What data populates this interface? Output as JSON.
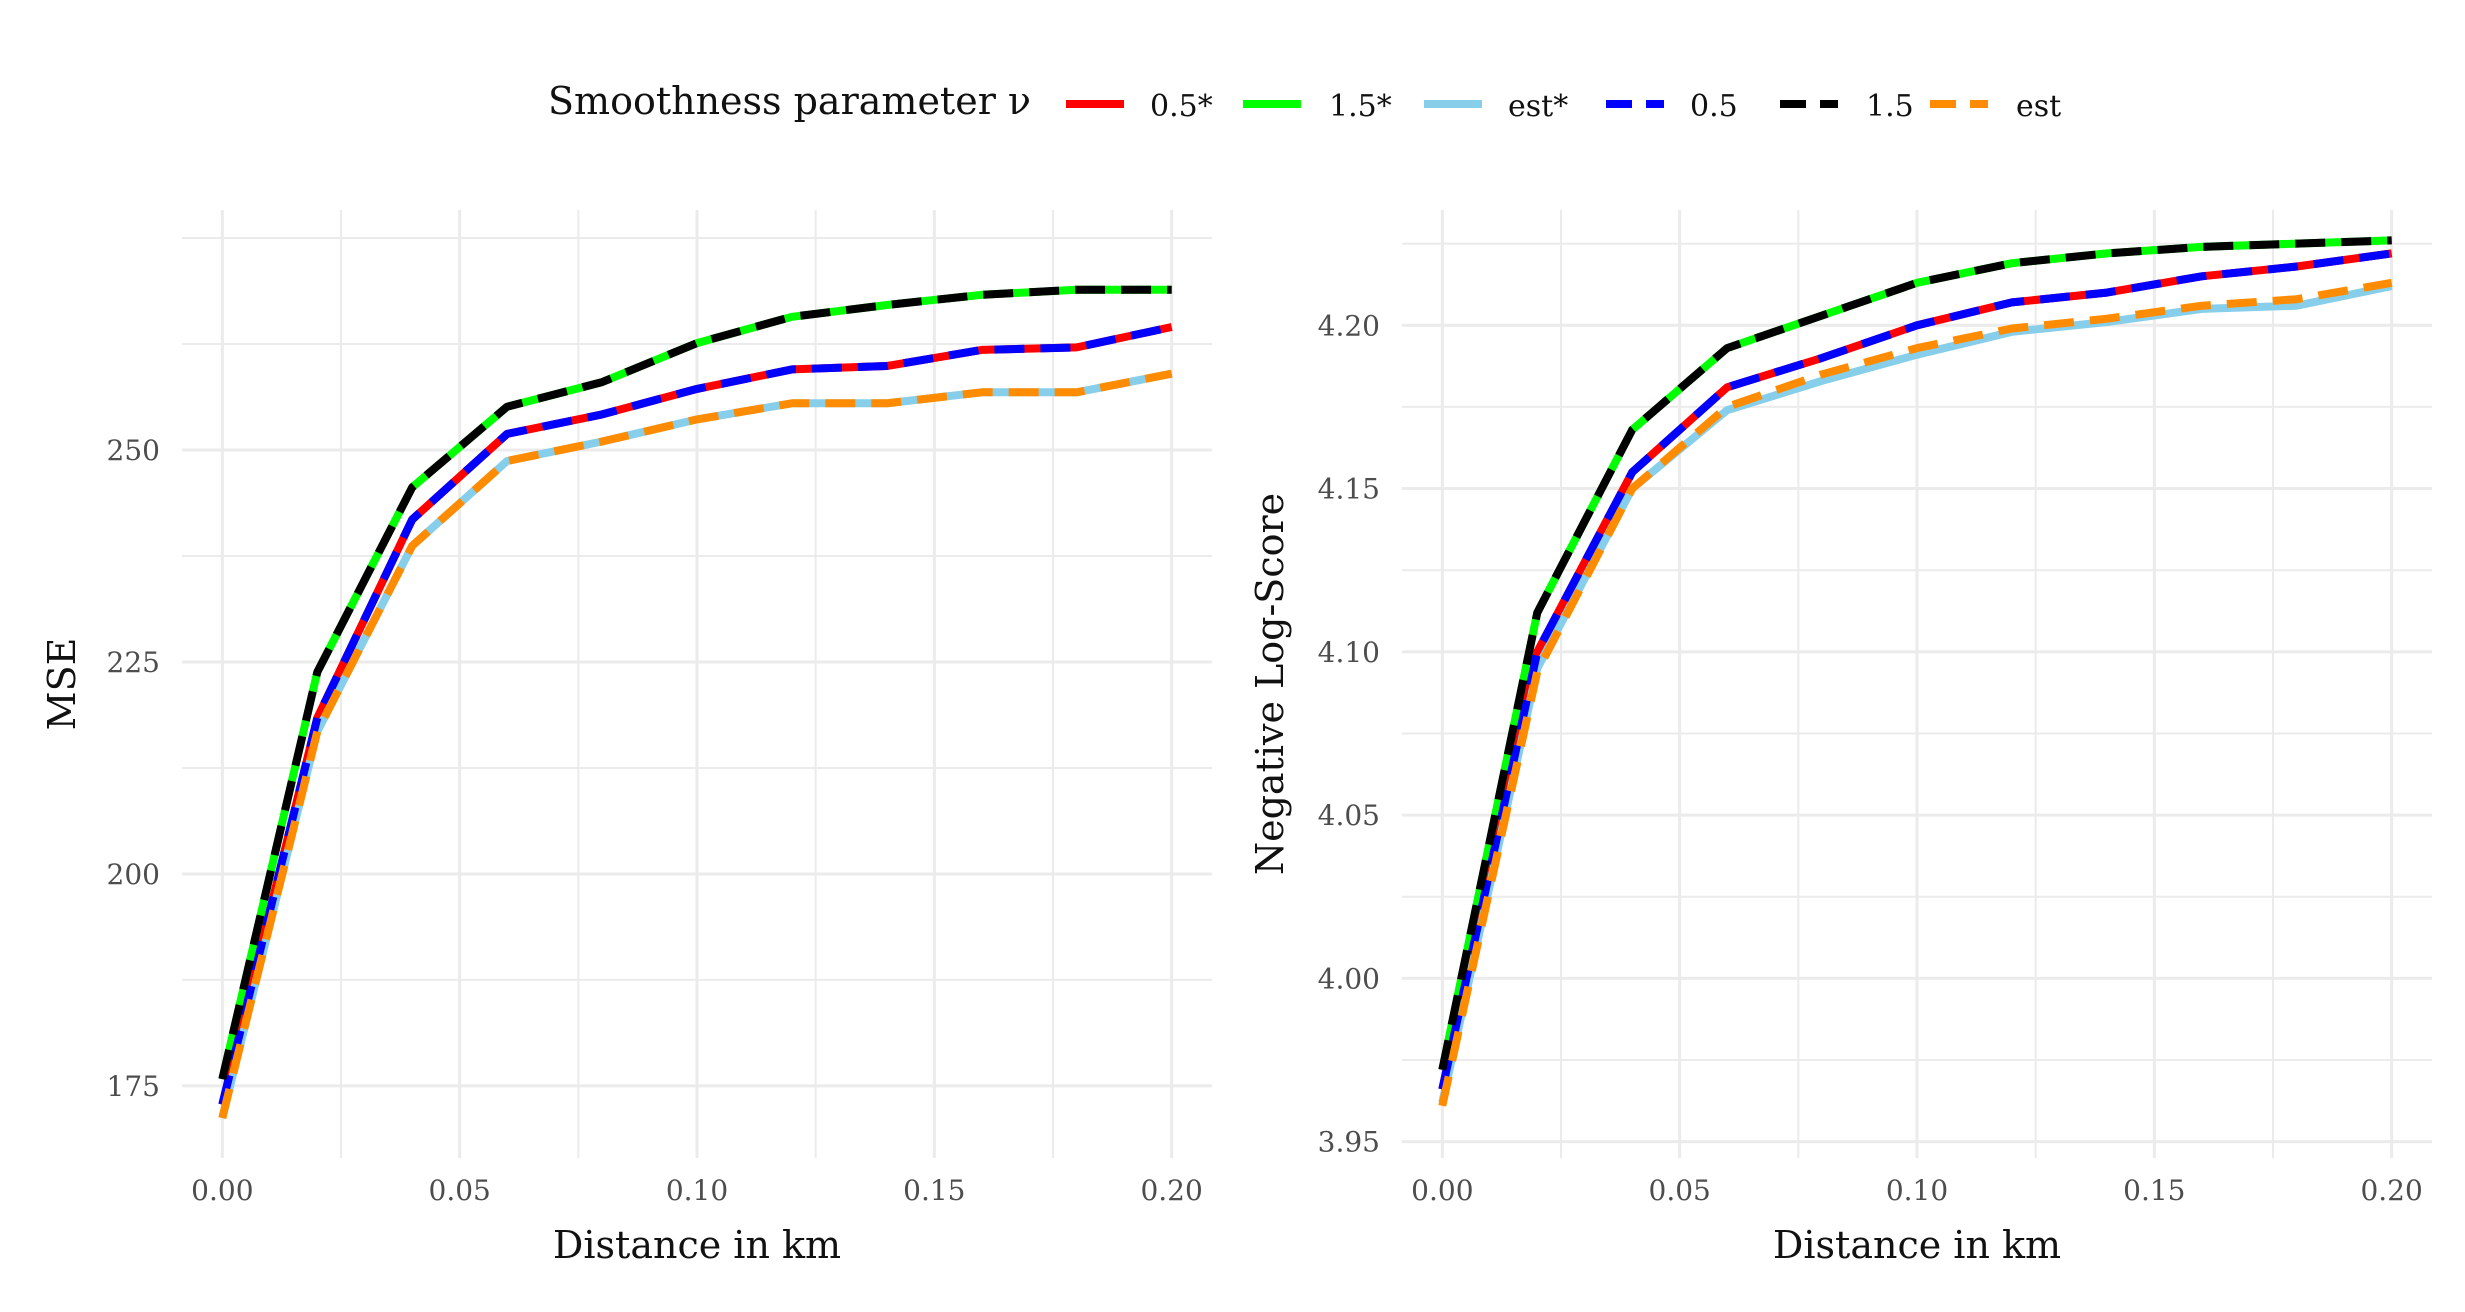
{
  "legend": {
    "title": "Smoothness parameter ν",
    "placement": "top"
  },
  "chart_data": [
    {
      "type": "line",
      "xlabel": "Distance in km",
      "ylabel": "MSE",
      "xlim": [
        -0.0085,
        0.2085
      ],
      "ylim": [
        166.5,
        278.3
      ],
      "xticks": [
        0.0,
        0.05,
        0.1,
        0.15,
        0.2
      ],
      "xtick_labels": [
        "0.00",
        "0.05",
        "0.10",
        "0.15",
        "0.20"
      ],
      "yticks": [
        175,
        200,
        225,
        250
      ],
      "ytick_labels": [
        "175",
        "200",
        "225",
        "250"
      ],
      "grid": true,
      "x": [
        0.0,
        0.02,
        0.04,
        0.06,
        0.08,
        0.1,
        0.12,
        0.14,
        0.16,
        0.18,
        0.2
      ],
      "series": [
        {
          "name": "0.5*",
          "color": "#ff0000",
          "dash": "solid",
          "values": [
            172.8,
            218.4,
            241.8,
            251.9,
            254.2,
            257.2,
            259.5,
            259.9,
            261.8,
            262.1,
            264.5
          ]
        },
        {
          "name": "1.5*",
          "color": "#00ff00",
          "dash": "solid",
          "values": [
            175.8,
            223.8,
            245.6,
            255.1,
            258.0,
            262.6,
            265.7,
            267.1,
            268.3,
            268.9,
            268.9
          ]
        },
        {
          "name": "est*",
          "color": "#87ceeb",
          "dash": "solid",
          "values": [
            171.2,
            216.8,
            238.7,
            248.7,
            251.0,
            253.6,
            255.5,
            255.5,
            256.8,
            256.8,
            259.0
          ]
        },
        {
          "name": "0.5",
          "color": "#0000ff",
          "dash": "dashed",
          "values": [
            172.8,
            218.4,
            241.8,
            251.9,
            254.2,
            257.2,
            259.5,
            259.9,
            261.8,
            262.1,
            264.5
          ]
        },
        {
          "name": "1.5",
          "color": "#000000",
          "dash": "dashed",
          "values": [
            175.8,
            223.8,
            245.6,
            255.1,
            258.0,
            262.6,
            265.7,
            267.1,
            268.3,
            268.9,
            268.9
          ]
        },
        {
          "name": "est",
          "color": "#ff8c00",
          "dash": "dashed",
          "values": [
            171.2,
            216.8,
            238.7,
            248.7,
            251.0,
            253.6,
            255.5,
            255.5,
            256.8,
            256.8,
            259.0
          ]
        }
      ]
    },
    {
      "type": "line",
      "xlabel": "Distance in km",
      "ylabel": "Negative Log-Score",
      "xlim": [
        -0.0085,
        0.2085
      ],
      "ylim": [
        3.945,
        4.2353
      ],
      "xticks": [
        0.0,
        0.05,
        0.1,
        0.15,
        0.2
      ],
      "xtick_labels": [
        "0.00",
        "0.05",
        "0.10",
        "0.15",
        "0.20"
      ],
      "yticks": [
        3.95,
        4.0,
        4.05,
        4.1,
        4.15,
        4.2
      ],
      "ytick_labels": [
        "3.95",
        "4.00",
        "4.05",
        "4.10",
        "4.15",
        "4.20"
      ],
      "grid": true,
      "x": [
        0.0,
        0.02,
        0.04,
        0.06,
        0.08,
        0.1,
        0.12,
        0.14,
        0.16,
        0.18,
        0.2
      ],
      "series": [
        {
          "name": "0.5*",
          "color": "#ff0000",
          "dash": "solid",
          "values": [
            3.966,
            4.1,
            4.155,
            4.181,
            4.19,
            4.2,
            4.207,
            4.21,
            4.215,
            4.218,
            4.222
          ]
        },
        {
          "name": "1.5*",
          "color": "#00ff00",
          "dash": "solid",
          "values": [
            3.972,
            4.112,
            4.168,
            4.193,
            4.203,
            4.213,
            4.219,
            4.222,
            4.224,
            4.225,
            4.226
          ]
        },
        {
          "name": "est*",
          "color": "#87ceeb",
          "dash": "solid",
          "values": [
            3.962,
            4.095,
            4.15,
            4.174,
            4.183,
            4.191,
            4.198,
            4.201,
            4.205,
            4.206,
            4.212
          ]
        },
        {
          "name": "0.5",
          "color": "#0000ff",
          "dash": "dashed",
          "values": [
            3.966,
            4.1,
            4.155,
            4.181,
            4.19,
            4.2,
            4.207,
            4.21,
            4.215,
            4.218,
            4.222
          ]
        },
        {
          "name": "1.5",
          "color": "#000000",
          "dash": "dashed",
          "values": [
            3.972,
            4.112,
            4.168,
            4.193,
            4.203,
            4.213,
            4.219,
            4.222,
            4.224,
            4.225,
            4.226
          ]
        },
        {
          "name": "est",
          "color": "#ff8c00",
          "dash": "dashed",
          "values": [
            3.961,
            4.094,
            4.15,
            4.175,
            4.185,
            4.193,
            4.199,
            4.202,
            4.206,
            4.208,
            4.213
          ]
        }
      ]
    }
  ]
}
